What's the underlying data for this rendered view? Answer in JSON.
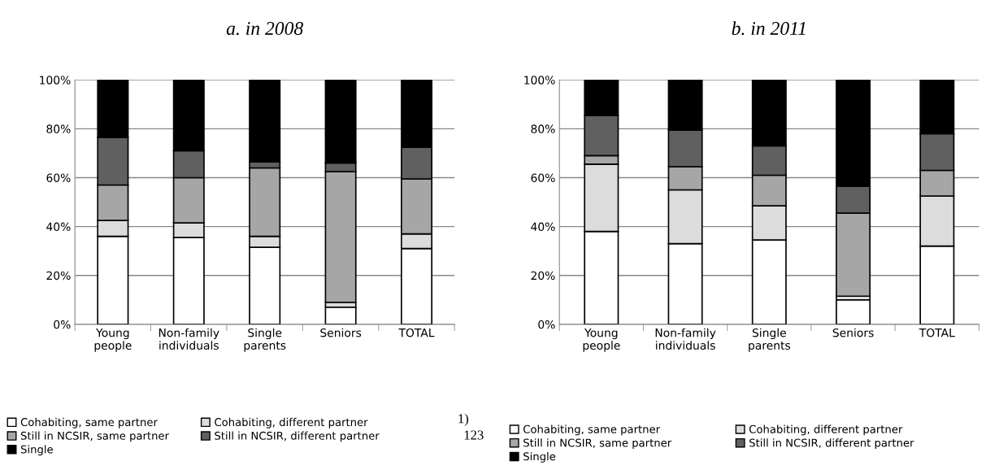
{
  "chart_data": [
    {
      "type": "bar",
      "title": "a. in 2008",
      "stacked": true,
      "categories": [
        "Young\npeople",
        "Non-family\nindividuals",
        "Single\nparents",
        "Seniors",
        "TOTAL"
      ],
      "series": [
        {
          "name": "Cohabiting, same partner",
          "color": "#ffffff",
          "values": [
            36,
            35.5,
            31.5,
            7,
            31
          ]
        },
        {
          "name": "Cohabiting, different partner",
          "color": "#dcdcdc",
          "values": [
            6.5,
            6,
            4.5,
            2,
            6
          ]
        },
        {
          "name": "Still in NCSIR, same partner",
          "color": "#a6a6a6",
          "values": [
            14.5,
            18.5,
            28,
            53.5,
            22.5
          ]
        },
        {
          "name": "Still in NCSIR, different partner",
          "color": "#606060",
          "values": [
            19.5,
            11,
            2.5,
            3.5,
            13
          ]
        },
        {
          "name": "Single",
          "color": "#000000",
          "values": [
            23.5,
            29,
            33.5,
            34,
            27.5
          ]
        }
      ],
      "ylim": [
        0,
        100
      ],
      "yticks": [
        {
          "value": 0,
          "label": "0%"
        },
        {
          "value": 20,
          "label": "20%"
        },
        {
          "value": 40,
          "label": "40%"
        },
        {
          "value": 60,
          "label": "60%"
        },
        {
          "value": 80,
          "label": "80%"
        },
        {
          "value": 100,
          "label": "100%"
        }
      ],
      "grid": "y",
      "legend": "bottom",
      "annotations": [
        "1)",
        "123"
      ]
    },
    {
      "type": "bar",
      "title": "b. in 2011",
      "stacked": true,
      "categories": [
        "Young\npeople",
        "Non-family\nindividuals",
        "Single\nparents",
        "Seniors",
        "TOTAL"
      ],
      "series": [
        {
          "name": "Cohabiting, same partner",
          "color": "#ffffff",
          "values": [
            38,
            33,
            34.5,
            10,
            32
          ]
        },
        {
          "name": "Cohabiting, different partner",
          "color": "#dcdcdc",
          "values": [
            27.5,
            22,
            14,
            1.5,
            20.5
          ]
        },
        {
          "name": "Still in NCSIR, same partner",
          "color": "#a6a6a6",
          "values": [
            3.5,
            9.5,
            12.5,
            34,
            10.5
          ]
        },
        {
          "name": "Still in NCSIR, different partner",
          "color": "#606060",
          "values": [
            16.5,
            15,
            12,
            11,
            15
          ]
        },
        {
          "name": "Single",
          "color": "#000000",
          "values": [
            14.5,
            20.5,
            27,
            43.5,
            22
          ]
        }
      ],
      "ylim": [
        0,
        100
      ],
      "yticks": [
        {
          "value": 0,
          "label": "0%"
        },
        {
          "value": 20,
          "label": "20%"
        },
        {
          "value": 40,
          "label": "40%"
        },
        {
          "value": 60,
          "label": "60%"
        },
        {
          "value": 80,
          "label": "80%"
        },
        {
          "value": 100,
          "label": "100%"
        }
      ],
      "grid": "y",
      "legend": "bottom"
    }
  ]
}
